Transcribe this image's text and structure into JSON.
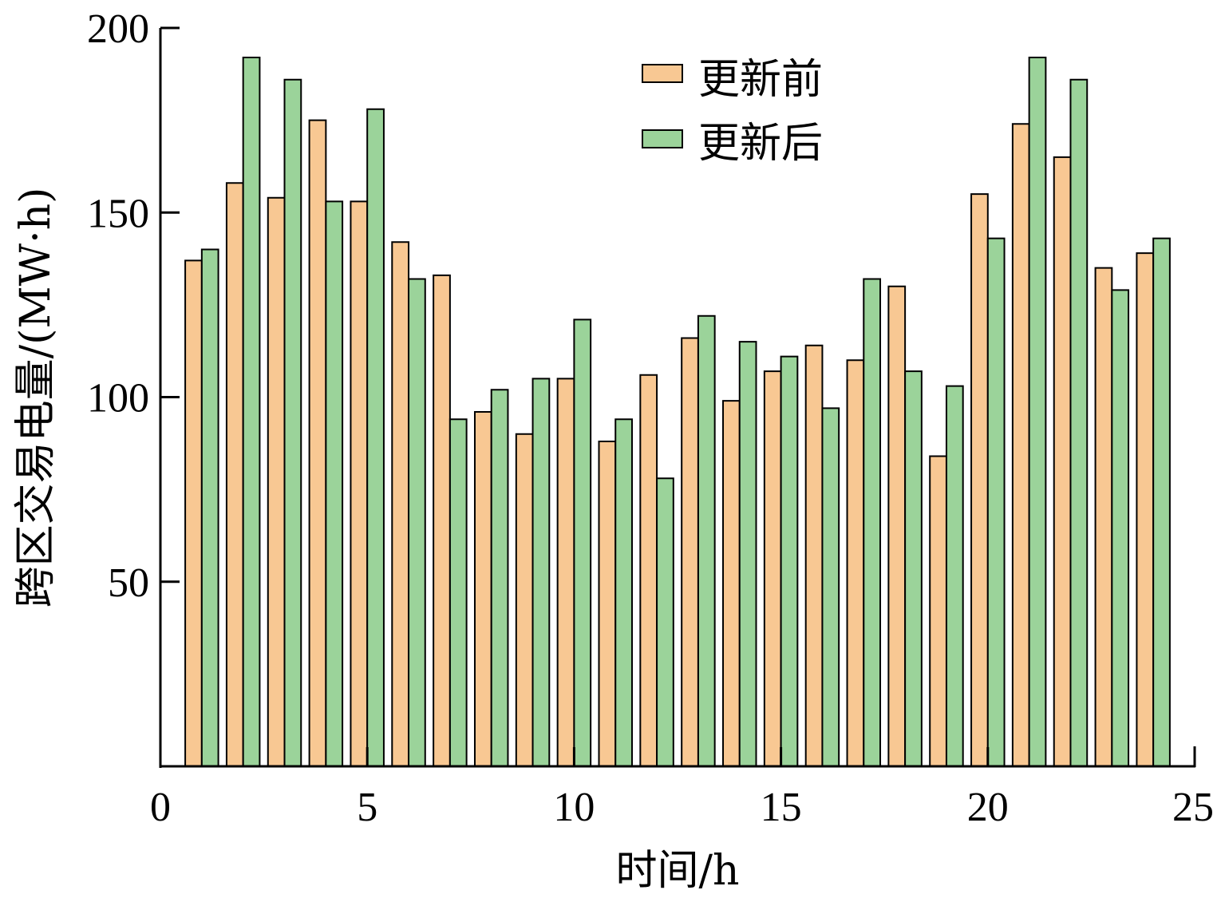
{
  "chart_data": {
    "type": "bar",
    "title": "",
    "xlabel": "时间/h",
    "ylabel": "跨区交易电量/(MW·h)",
    "x": [
      1,
      2,
      3,
      4,
      5,
      6,
      7,
      8,
      9,
      10,
      11,
      12,
      13,
      14,
      15,
      16,
      17,
      18,
      19,
      20,
      21,
      22,
      23,
      24
    ],
    "xlim": [
      0,
      25
    ],
    "ylim": [
      0,
      200
    ],
    "xticks": [
      0,
      5,
      10,
      15,
      20,
      25
    ],
    "yticks": [
      50,
      100,
      150,
      200
    ],
    "xtick_labels": [
      "0",
      "5",
      "10",
      "15",
      "20",
      "25"
    ],
    "ytick_labels": [
      "50",
      "100",
      "150",
      "200"
    ],
    "grid": false,
    "legend_position": "top-right",
    "series": [
      {
        "name": "更新前",
        "color": "#F8C893",
        "values": [
          137,
          158,
          154,
          175,
          153,
          142,
          133,
          96,
          90,
          105,
          88,
          106,
          116,
          99,
          107,
          114,
          110,
          130,
          84,
          155,
          174,
          165,
          135,
          139
        ]
      },
      {
        "name": "更新后",
        "color": "#9BD39A",
        "values": [
          140,
          192,
          186,
          153,
          178,
          132,
          94,
          102,
          105,
          121,
          94,
          78,
          122,
          115,
          111,
          97,
          132,
          107,
          103,
          143,
          192,
          186,
          129,
          143
        ]
      }
    ]
  }
}
